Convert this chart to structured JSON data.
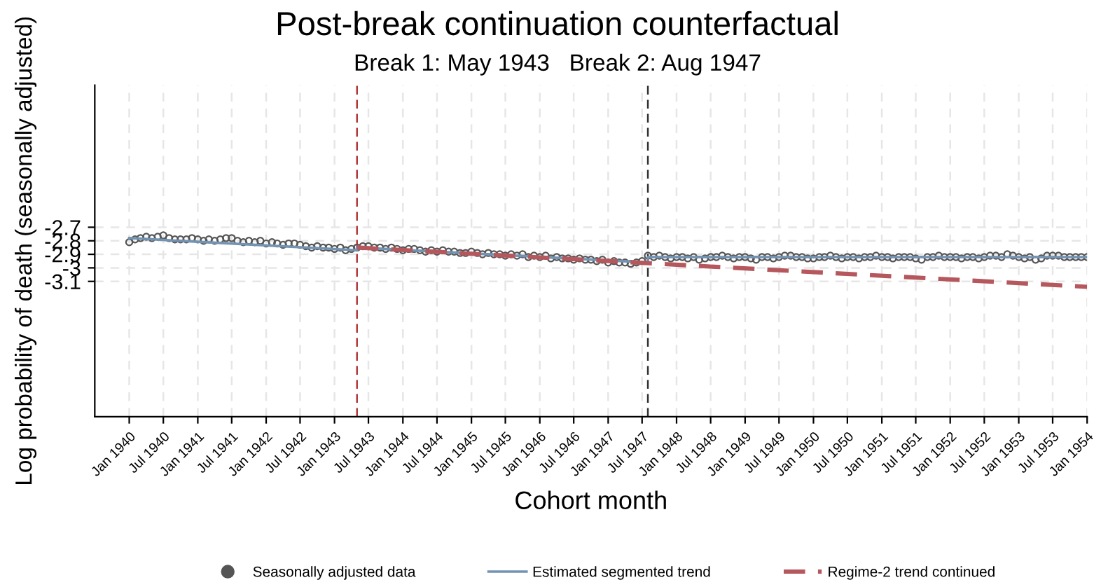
{
  "chart_data": {
    "type": "scatter",
    "title": "Post-break continuation counterfactual",
    "subtitle": "Break 1: May 1943   Break 2: Aug 1947",
    "xlabel": "Cohort month",
    "ylabel": "Log probability of death (seasonally adjusted)",
    "x": [
      "1940-01",
      "1940-02",
      "1940-03",
      "1940-04",
      "1940-05",
      "1940-06",
      "1940-07",
      "1940-08",
      "1940-09",
      "1940-10",
      "1940-11",
      "1940-12",
      "1941-01",
      "1941-02",
      "1941-03",
      "1941-04",
      "1941-05",
      "1941-06",
      "1941-07",
      "1941-08",
      "1941-09",
      "1941-10",
      "1941-11",
      "1941-12",
      "1942-01",
      "1942-02",
      "1942-03",
      "1942-04",
      "1942-05",
      "1942-06",
      "1942-07",
      "1942-08",
      "1942-09",
      "1942-10",
      "1942-11",
      "1942-12",
      "1943-01",
      "1943-02",
      "1943-03",
      "1943-04",
      "1943-05",
      "1943-06",
      "1943-07",
      "1943-08",
      "1943-09",
      "1943-10",
      "1943-11",
      "1943-12",
      "1944-01",
      "1944-02",
      "1944-03",
      "1944-04",
      "1944-05",
      "1944-06",
      "1944-07",
      "1944-08",
      "1944-09",
      "1944-10",
      "1944-11",
      "1944-12",
      "1945-01",
      "1945-02",
      "1945-03",
      "1945-04",
      "1945-05",
      "1945-06",
      "1945-07",
      "1945-08",
      "1945-09",
      "1945-10",
      "1945-11",
      "1945-12",
      "1946-01",
      "1946-02",
      "1946-03",
      "1946-04",
      "1946-05",
      "1946-06",
      "1946-07",
      "1946-08",
      "1946-09",
      "1946-10",
      "1946-11",
      "1946-12",
      "1947-01",
      "1947-02",
      "1947-03",
      "1947-04",
      "1947-05",
      "1947-06",
      "1947-07",
      "1947-08",
      "1947-09",
      "1947-10",
      "1947-11",
      "1947-12",
      "1948-01",
      "1948-02",
      "1948-03",
      "1948-04",
      "1948-05",
      "1948-06",
      "1948-07",
      "1948-08",
      "1948-09",
      "1948-10",
      "1948-11",
      "1948-12",
      "1949-01",
      "1949-02",
      "1949-03",
      "1949-04",
      "1949-05",
      "1949-06",
      "1949-07",
      "1949-08",
      "1949-09",
      "1949-10",
      "1949-11",
      "1949-12",
      "1950-01",
      "1950-02",
      "1950-03",
      "1950-04",
      "1950-05",
      "1950-06",
      "1950-07",
      "1950-08",
      "1950-09",
      "1950-10",
      "1950-11",
      "1950-12",
      "1951-01",
      "1951-02",
      "1951-03",
      "1951-04",
      "1951-05",
      "1951-06",
      "1951-07",
      "1951-08",
      "1951-09",
      "1951-10",
      "1951-11",
      "1951-12",
      "1952-01",
      "1952-02",
      "1952-03",
      "1952-04",
      "1952-05",
      "1952-06",
      "1952-07",
      "1952-08",
      "1952-09",
      "1952-10",
      "1952-11",
      "1952-12",
      "1953-01",
      "1953-02",
      "1953-03",
      "1953-04",
      "1953-05",
      "1953-06",
      "1953-07",
      "1953-08",
      "1953-09",
      "1953-10",
      "1953-11",
      "1953-12",
      "1954-01"
    ],
    "series": [
      {
        "name": "Seasonally adjusted data",
        "color": "#555555",
        "marker": "circle",
        "values": [
          -2.81,
          -2.79,
          -2.78,
          -2.77,
          -2.78,
          -2.77,
          -2.76,
          -2.78,
          -2.79,
          -2.79,
          -2.79,
          -2.78,
          -2.79,
          -2.8,
          -2.79,
          -2.8,
          -2.79,
          -2.78,
          -2.78,
          -2.8,
          -2.81,
          -2.8,
          -2.81,
          -2.8,
          -2.82,
          -2.81,
          -2.82,
          -2.83,
          -2.82,
          -2.82,
          -2.83,
          -2.84,
          -2.85,
          -2.84,
          -2.85,
          -2.85,
          -2.86,
          -2.85,
          -2.87,
          -2.86,
          -2.85,
          -2.84,
          -2.84,
          -2.85,
          -2.85,
          -2.86,
          -2.85,
          -2.86,
          -2.87,
          -2.86,
          -2.86,
          -2.87,
          -2.88,
          -2.87,
          -2.88,
          -2.87,
          -2.88,
          -2.88,
          -2.89,
          -2.89,
          -2.88,
          -2.89,
          -2.9,
          -2.89,
          -2.9,
          -2.9,
          -2.91,
          -2.9,
          -2.91,
          -2.9,
          -2.92,
          -2.91,
          -2.92,
          -2.91,
          -2.93,
          -2.92,
          -2.93,
          -2.93,
          -2.94,
          -2.93,
          -2.94,
          -2.94,
          -2.95,
          -2.94,
          -2.96,
          -2.95,
          -2.96,
          -2.96,
          -2.97,
          -2.96,
          -2.95,
          -2.91,
          -2.92,
          -2.91,
          -2.92,
          -2.93,
          -2.92,
          -2.92,
          -2.93,
          -2.92,
          -2.94,
          -2.93,
          -2.92,
          -2.92,
          -2.91,
          -2.92,
          -2.93,
          -2.92,
          -2.92,
          -2.93,
          -2.94,
          -2.92,
          -2.92,
          -2.93,
          -2.92,
          -2.91,
          -2.91,
          -2.92,
          -2.92,
          -2.93,
          -2.93,
          -2.92,
          -2.92,
          -2.91,
          -2.92,
          -2.93,
          -2.92,
          -2.92,
          -2.93,
          -2.92,
          -2.92,
          -2.91,
          -2.92,
          -2.92,
          -2.93,
          -2.92,
          -2.92,
          -2.92,
          -2.93,
          -2.94,
          -2.92,
          -2.92,
          -2.91,
          -2.92,
          -2.92,
          -2.92,
          -2.93,
          -2.92,
          -2.92,
          -2.93,
          -2.92,
          -2.91,
          -2.91,
          -2.92,
          -2.9,
          -2.91,
          -2.92,
          -2.93,
          -2.92,
          -2.94,
          -2.93,
          -2.91,
          -2.91,
          -2.91,
          -2.92,
          -2.92,
          -2.92,
          -2.92,
          -2.92
        ]
      },
      {
        "name": "Estimated segmented trend",
        "type": "line",
        "color": "#7393b3",
        "line_style": "solid",
        "x": [
          "1940-01",
          "1943-05",
          "1943-05",
          "1947-08",
          "1947-08",
          "1954-01"
        ],
        "values": [
          -2.78,
          -2.87,
          -2.85,
          -2.96,
          -2.92,
          -2.92
        ]
      },
      {
        "name": "Regime-2 trend continued",
        "type": "line",
        "color": "#b5575c",
        "line_style": "dashed",
        "x": [
          "1943-05",
          "1954-01"
        ],
        "values": [
          -2.85,
          -3.14
        ]
      }
    ],
    "ref_lines": [
      {
        "axis": "x",
        "value": "1943-05",
        "color": "#b03a3a",
        "line_style": "dashed"
      },
      {
        "axis": "x",
        "value": "1947-08",
        "color": "#333333",
        "line_style": "dashed"
      }
    ],
    "xlim": [
      "1939-07",
      "1954-01"
    ],
    "xticks": [
      {
        "value": "1940-01",
        "label": "Jan 1940"
      },
      {
        "value": "1940-07",
        "label": "Jul 1940"
      },
      {
        "value": "1941-01",
        "label": "Jan 1941"
      },
      {
        "value": "1941-07",
        "label": "Jul 1941"
      },
      {
        "value": "1942-01",
        "label": "Jan 1942"
      },
      {
        "value": "1942-07",
        "label": "Jul 1942"
      },
      {
        "value": "1943-01",
        "label": "Jan 1943"
      },
      {
        "value": "1943-07",
        "label": "Jul 1943"
      },
      {
        "value": "1944-01",
        "label": "Jan 1944"
      },
      {
        "value": "1944-07",
        "label": "Jul 1944"
      },
      {
        "value": "1945-01",
        "label": "Jan 1945"
      },
      {
        "value": "1945-07",
        "label": "Jul 1945"
      },
      {
        "value": "1946-01",
        "label": "Jan 1946"
      },
      {
        "value": "1946-07",
        "label": "Jul 1946"
      },
      {
        "value": "1947-01",
        "label": "Jan 1947"
      },
      {
        "value": "1947-07",
        "label": "Jul 1947"
      },
      {
        "value": "1948-01",
        "label": "Jan 1948"
      },
      {
        "value": "1948-07",
        "label": "Jul 1948"
      },
      {
        "value": "1949-01",
        "label": "Jan 1949"
      },
      {
        "value": "1949-07",
        "label": "Jul 1949"
      },
      {
        "value": "1950-01",
        "label": "Jan 1950"
      },
      {
        "value": "1950-07",
        "label": "Jul 1950"
      },
      {
        "value": "1951-01",
        "label": "Jan 1951"
      },
      {
        "value": "1951-07",
        "label": "Jul 1951"
      },
      {
        "value": "1952-01",
        "label": "Jan 1952"
      },
      {
        "value": "1952-07",
        "label": "Jul 1952"
      },
      {
        "value": "1953-01",
        "label": "Jan 1953"
      },
      {
        "value": "1953-07",
        "label": "Jul 1953"
      },
      {
        "value": "1954-01",
        "label": "Jan 1954"
      }
    ],
    "ylim": [
      -4.1,
      -1.65
    ],
    "yticks": [
      -2.7,
      -2.8,
      -2.9,
      -3,
      -3.1
    ],
    "grid": true,
    "legend": "bottom"
  }
}
